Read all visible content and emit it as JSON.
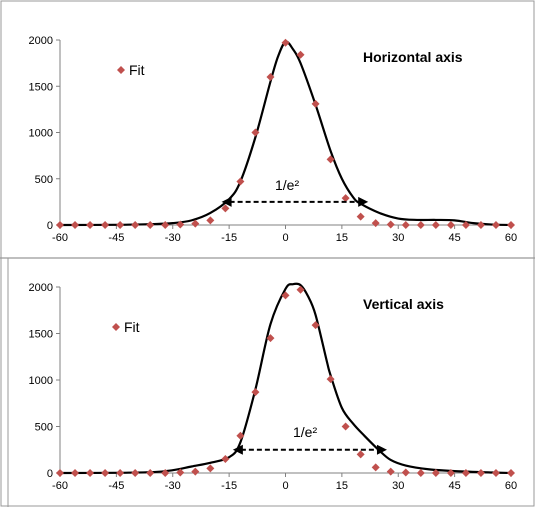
{
  "colors": {
    "marker": "#c0504d",
    "curve": "#000000",
    "axis": "#808080",
    "divider": "#999999"
  },
  "chart_data": [
    {
      "type": "scatter",
      "title": "Horizontal axis",
      "legend": {
        "label": "Fit",
        "placement": "top-left"
      },
      "xlim": [
        -60,
        60
      ],
      "ylim": [
        0,
        2000
      ],
      "xticks": [
        "-60",
        "-45",
        "-30",
        "-15",
        "0",
        "15",
        "30",
        "45",
        "60"
      ],
      "yticks": [
        "0",
        "500",
        "1000",
        "1500",
        "2000"
      ],
      "grid": false,
      "points": {
        "x": [
          -60,
          -56,
          -52,
          -48,
          -44,
          -40,
          -36,
          -32,
          -28,
          -24,
          -20,
          -16,
          -12,
          -8,
          -4,
          0,
          4,
          8,
          12,
          16,
          20,
          24,
          28,
          32,
          36,
          40,
          44,
          48,
          52,
          56,
          60
        ],
        "y": [
          0,
          0,
          0,
          0,
          0,
          0,
          0,
          0,
          5,
          15,
          50,
          180,
          470,
          1000,
          1600,
          1970,
          1840,
          1310,
          710,
          290,
          90,
          20,
          5,
          0,
          0,
          0,
          0,
          0,
          0,
          0,
          0
        ]
      },
      "curve": {
        "x": [
          -60,
          -45,
          -35,
          -30,
          -25,
          -20,
          -15,
          -12,
          -8,
          -4,
          -2,
          0,
          2,
          4,
          8,
          12,
          15,
          18,
          20,
          25,
          30,
          35,
          40,
          45,
          50,
          55,
          60
        ],
        "y": [
          0,
          2,
          10,
          20,
          50,
          130,
          280,
          470,
          950,
          1550,
          1820,
          1980,
          1900,
          1750,
          1300,
          800,
          500,
          300,
          230,
          130,
          70,
          55,
          55,
          50,
          20,
          5,
          0
        ]
      },
      "annotation": {
        "text": "1/e²",
        "arrow_from_x": -17,
        "arrow_to_x": 22,
        "arrow_y": 250
      }
    },
    {
      "type": "scatter",
      "title": "Vertical axis",
      "legend": {
        "label": "Fit",
        "placement": "top-left"
      },
      "xlim": [
        -60,
        60
      ],
      "ylim": [
        0,
        2000
      ],
      "xticks": [
        "-60",
        "-45",
        "-30",
        "-15",
        "0",
        "15",
        "30",
        "45",
        "60"
      ],
      "yticks": [
        "0",
        "500",
        "1000",
        "1500",
        "2000"
      ],
      "grid": false,
      "points": {
        "x": [
          -60,
          -56,
          -52,
          -48,
          -44,
          -40,
          -36,
          -32,
          -28,
          -24,
          -20,
          -16,
          -12,
          -8,
          -4,
          0,
          4,
          8,
          12,
          16,
          20,
          24,
          28,
          32,
          36,
          40,
          44,
          48,
          52,
          56,
          60
        ],
        "y": [
          0,
          0,
          0,
          0,
          0,
          0,
          0,
          0,
          5,
          15,
          50,
          150,
          400,
          870,
          1450,
          1910,
          1970,
          1590,
          1010,
          500,
          200,
          60,
          15,
          5,
          0,
          0,
          0,
          0,
          0,
          0,
          0
        ]
      },
      "curve": {
        "x": [
          -60,
          -45,
          -35,
          -30,
          -25,
          -20,
          -15,
          -12,
          -8,
          -4,
          0,
          2,
          4,
          6,
          8,
          11,
          12,
          15,
          18,
          21,
          25,
          28,
          32,
          38,
          45,
          55,
          60
        ],
        "y": [
          0,
          2,
          10,
          30,
          70,
          110,
          170,
          330,
          900,
          1600,
          1980,
          2030,
          2020,
          1900,
          1700,
          1200,
          1050,
          700,
          530,
          400,
          240,
          140,
          80,
          40,
          20,
          5,
          0
        ]
      },
      "annotation": {
        "text": "1/e²",
        "arrow_from_x": -14,
        "arrow_to_x": 27,
        "arrow_y": 250
      }
    }
  ]
}
